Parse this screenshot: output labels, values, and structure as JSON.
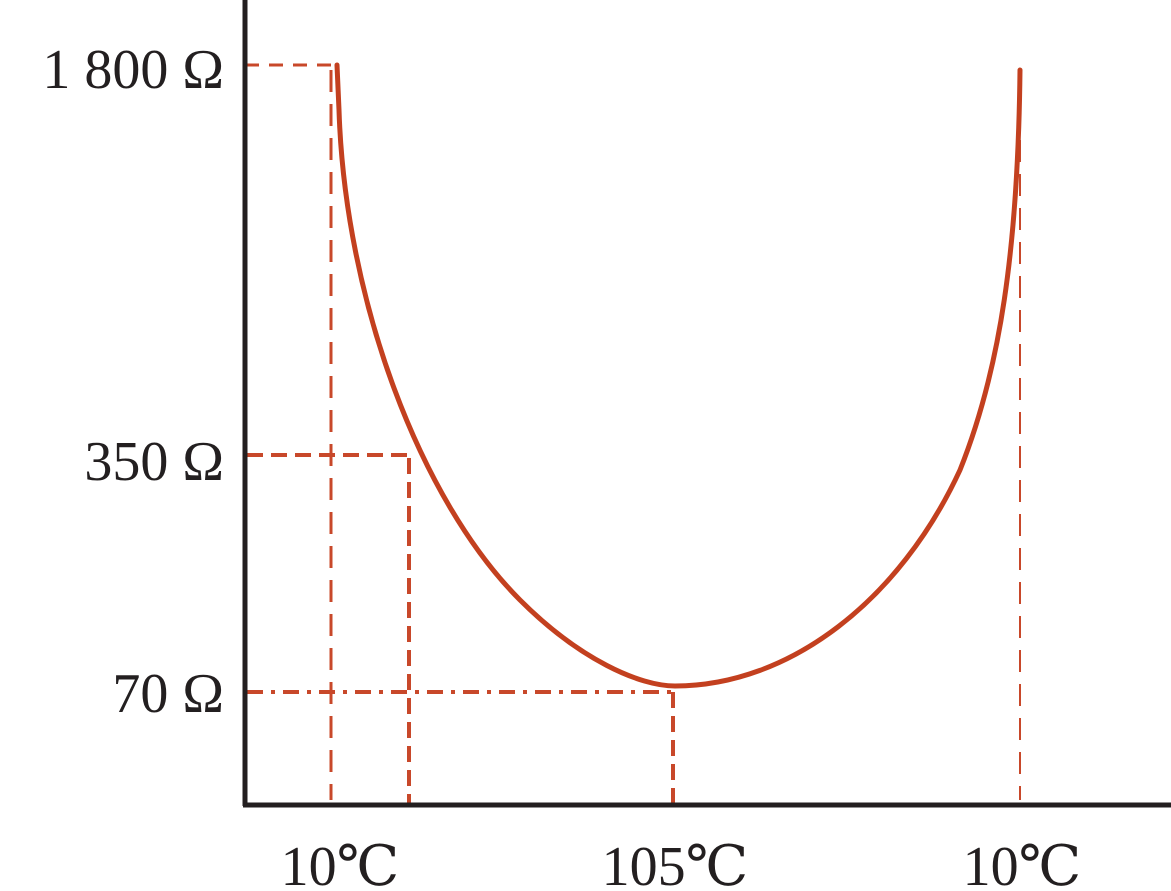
{
  "chart_data": {
    "type": "line",
    "title": "",
    "xlabel": "",
    "ylabel": "",
    "x_tick_labels": [
      "10℃",
      "105℃",
      "10℃"
    ],
    "y_tick_labels": [
      "1 800 Ω",
      "350 Ω",
      "70 Ω"
    ],
    "points": [
      {
        "x_label": "10℃",
        "y_label": "1 800 Ω",
        "resistance": 1800
      },
      {
        "y_label": "350 Ω",
        "resistance": 350
      },
      {
        "x_label": "105℃",
        "y_label": "70 Ω",
        "resistance": 70,
        "note": "minimum"
      },
      {
        "x_label": "10℃",
        "resistance": 1800
      }
    ],
    "grid": false,
    "colors": {
      "curve": "#c3401f",
      "guides": "#c8482a",
      "axis": "#231f20"
    }
  }
}
